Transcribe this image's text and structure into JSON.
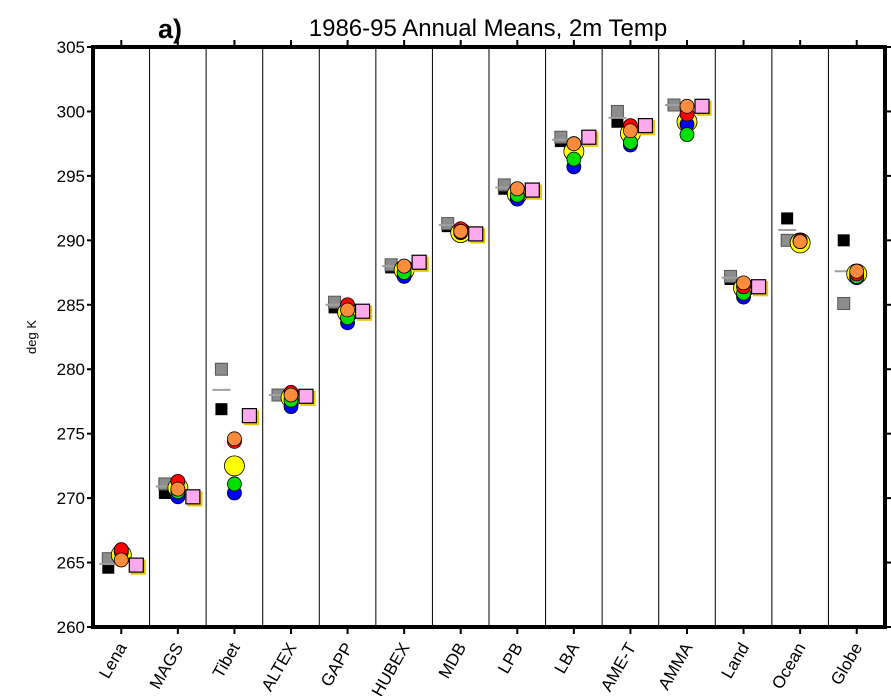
{
  "chart_data": {
    "type": "scatter",
    "panel_label": "a)",
    "title": "1986-95 Annual Means, 2m Temp",
    "y_label": "deg K",
    "categories": [
      "Lena",
      "MAGS",
      "Tibet",
      "ALTEX",
      "GAPP",
      "HUBEX",
      "MDB",
      "LPB",
      "LBA",
      "AME-T",
      "AMMA",
      "Land",
      "Ocean",
      "Globe"
    ],
    "ylim": [
      260,
      305
    ],
    "yticks": [
      260,
      265,
      270,
      275,
      280,
      285,
      290,
      295,
      300,
      305
    ],
    "grid": true,
    "series": [
      {
        "color": "#000000",
        "marker": "square",
        "values": [
          264.6,
          270.4,
          276.9,
          278.0,
          284.8,
          287.9,
          291.1,
          294.0,
          297.7,
          299.2,
          300.5,
          287.0,
          291.7,
          290.0
        ]
      },
      {
        "color": "#8c8c8c",
        "marker": "square",
        "values": [
          265.3,
          271.1,
          280.0,
          278.0,
          285.2,
          288.1,
          291.3,
          294.3,
          298.0,
          300.0,
          300.5,
          287.2,
          290.0,
          285.1
        ]
      },
      {
        "color": "#a0a0a0",
        "marker": "line",
        "values": [
          264.9,
          270.9,
          278.4,
          278.0,
          285.0,
          288.0,
          291.2,
          294.1,
          297.8,
          299.5,
          300.5,
          287.1,
          290.8,
          287.6
        ]
      },
      {
        "color": "#ffff00",
        "marker": "large-circle",
        "values": [
          265.6,
          270.8,
          272.5,
          277.8,
          284.4,
          287.7,
          290.6,
          293.6,
          296.9,
          298.3,
          299.2,
          286.3,
          289.8,
          287.4
        ]
      },
      {
        "color": "#0000ff",
        "marker": "circle",
        "values": [
          265.9,
          270.1,
          270.4,
          277.1,
          283.6,
          287.2,
          290.6,
          293.2,
          295.7,
          297.4,
          299.0,
          285.6,
          289.9,
          287.1
        ]
      },
      {
        "color": "#00e000",
        "marker": "circle",
        "values": [
          265.8,
          270.5,
          271.1,
          277.6,
          284.0,
          287.5,
          290.7,
          293.5,
          296.3,
          297.6,
          298.2,
          285.9,
          289.9,
          287.2
        ]
      },
      {
        "color": "#ff0000",
        "marker": "circle",
        "values": [
          266.0,
          271.3,
          274.4,
          278.2,
          285.0,
          288.0,
          290.9,
          294.0,
          297.5,
          298.9,
          299.8,
          286.4,
          290.0,
          287.4
        ]
      },
      {
        "color": "#ff8c3c",
        "marker": "circle",
        "values": [
          265.2,
          270.7,
          274.6,
          278.0,
          284.6,
          288.0,
          290.7,
          294.0,
          297.5,
          298.5,
          300.4,
          286.7,
          289.9,
          287.6
        ]
      },
      {
        "color": "#ffaaee",
        "marker": "framed-square",
        "values": [
          264.8,
          270.1,
          276.4,
          277.9,
          284.5,
          288.3,
          290.5,
          293.9,
          298.0,
          298.9,
          300.4,
          286.4,
          null,
          null
        ]
      }
    ]
  }
}
